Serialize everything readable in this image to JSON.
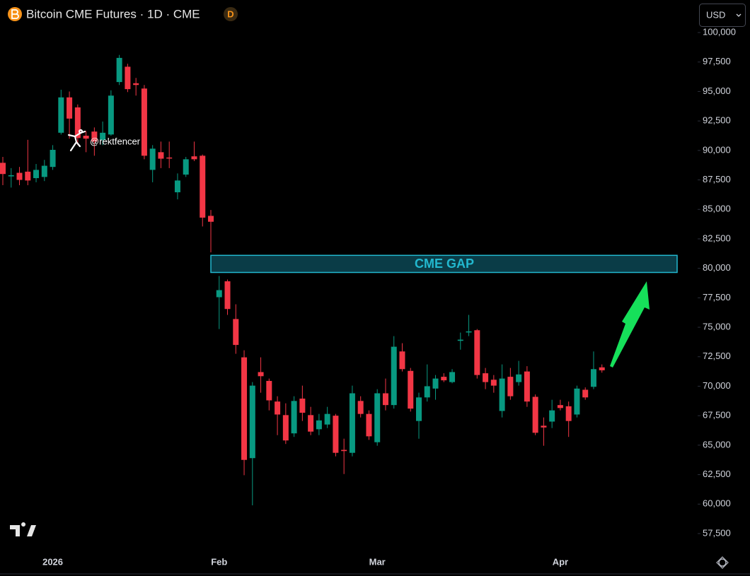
{
  "chart_data": {
    "type": "candlestick",
    "title": "Bitcoin CME Futures · 1D · CME",
    "badge": "D",
    "currency": "USD",
    "watermark": "@rektfencer",
    "gap": {
      "label": "CME GAP",
      "low": 79650,
      "high": 81100
    },
    "up_color": "#089981",
    "down_color": "#f23645",
    "categories": [
      null,
      null,
      null,
      null,
      null,
      null,
      "2026",
      null,
      null,
      null,
      null,
      null,
      null,
      null,
      null,
      null,
      null,
      null,
      null,
      null,
      null,
      null,
      null,
      null,
      null,
      null,
      "Feb",
      null,
      null,
      null,
      null,
      null,
      null,
      null,
      null,
      null,
      null,
      null,
      null,
      null,
      null,
      null,
      null,
      null,
      null,
      "Mar",
      null,
      null,
      null,
      null,
      null,
      null,
      null,
      null,
      null,
      null,
      null,
      null,
      null,
      null,
      null,
      null,
      null,
      null,
      null,
      null,
      null,
      "Apr",
      null,
      null,
      null,
      null,
      null
    ],
    "open": [
      88950,
      87800,
      88100,
      88200,
      87650,
      87750,
      88600,
      91500,
      94500,
      93650,
      91250,
      91600,
      90900,
      91350,
      95800,
      97100,
      95700,
      95250,
      88350,
      89850,
      89400,
      86450,
      87950,
      89500,
      89550,
      84450,
      77550,
      78900,
      75700,
      72450,
      63900,
      71200,
      70450,
      68700,
      67550,
      66000,
      68950,
      67550,
      66350,
      66750,
      67500,
      64600,
      64350,
      68750,
      67650,
      65250,
      69400,
      68400,
      72950,
      71300,
      67050,
      69050,
      69800,
      70800,
      70350,
      73850,
      74600,
      74750,
      71100,
      70550,
      67900,
      70800,
      70350,
      71250,
      69100,
      66650,
      67000,
      68400,
      68300,
      67600,
      69700,
      69950,
      71600
    ],
    "high": [
      89450,
      88500,
      88600,
      90900,
      88850,
      89200,
      90450,
      95150,
      95000,
      93900,
      91650,
      91950,
      92450,
      95100,
      98100,
      97350,
      96150,
      95550,
      90450,
      90750,
      90750,
      88050,
      89450,
      90750,
      89650,
      84950,
      79350,
      79050,
      76950,
      73050,
      70350,
      72450,
      70650,
      69150,
      68550,
      69150,
      70050,
      68250,
      67650,
      68250,
      67650,
      65550,
      70050,
      69150,
      67950,
      69750,
      70650,
      74250,
      73650,
      71550,
      69450,
      71850,
      70950,
      71100,
      71450,
      74550,
      76050,
      74850,
      71550,
      70950,
      71850,
      71550,
      72150,
      71700,
      69300,
      67350,
      68850,
      68850,
      68700,
      70050,
      69900,
      72950,
      71850
    ],
    "low": [
      87050,
      86850,
      87050,
      87050,
      87300,
      87400,
      88350,
      91350,
      91000,
      90450,
      89850,
      89550,
      90450,
      91250,
      95550,
      94950,
      94650,
      89250,
      87300,
      88500,
      88500,
      85850,
      87750,
      89100,
      83550,
      81350,
      74850,
      76050,
      72750,
      62450,
      59900,
      69450,
      67950,
      65850,
      65100,
      65700,
      67050,
      65850,
      65850,
      66450,
      64050,
      62550,
      64050,
      67350,
      65450,
      64950,
      67950,
      68100,
      71250,
      67850,
      65550,
      68700,
      68850,
      70350,
      70250,
      73100,
      74250,
      70650,
      69750,
      69450,
      67350,
      68850,
      70050,
      68250,
      65850,
      64950,
      66450,
      67950,
      65700,
      67350,
      68850,
      69750,
      71150
    ],
    "close": [
      88000,
      87900,
      87500,
      87450,
      88350,
      88700,
      90050,
      94500,
      92700,
      91050,
      91000,
      90750,
      91500,
      94650,
      97850,
      95200,
      95550,
      89550,
      90150,
      89300,
      89350,
      87450,
      89250,
      89250,
      84300,
      83950,
      78150,
      76550,
      73500,
      63750,
      70050,
      70850,
      68800,
      67600,
      65400,
      68750,
      67750,
      66150,
      67100,
      67650,
      64350,
      64500,
      69400,
      67650,
      65750,
      69400,
      68400,
      73350,
      71450,
      68100,
      69050,
      70000,
      70650,
      70500,
      71200,
      73950,
      74650,
      70950,
      70350,
      70050,
      70650,
      69150,
      71000,
      68700,
      66050,
      66500,
      67950,
      68150,
      67050,
      69800,
      69050,
      71450,
      71350
    ],
    "ylim": [
      56000,
      102760
    ],
    "yticks": [
      {
        "value": 57500,
        "label": "57,500"
      },
      {
        "value": 60000,
        "label": "60,000"
      },
      {
        "value": 62500,
        "label": "62,500"
      },
      {
        "value": 65000,
        "label": "65,000"
      },
      {
        "value": 67500,
        "label": "67,500"
      },
      {
        "value": 70000,
        "label": "70,000"
      },
      {
        "value": 72500,
        "label": "72,500"
      },
      {
        "value": 75000,
        "label": "75,000"
      },
      {
        "value": 77500,
        "label": "77,500"
      },
      {
        "value": 80000,
        "label": "80,000"
      },
      {
        "value": 82500,
        "label": "82,500"
      },
      {
        "value": 85000,
        "label": "85,000"
      },
      {
        "value": 87500,
        "label": "87,500"
      },
      {
        "value": 90000,
        "label": "90,000"
      },
      {
        "value": 92500,
        "label": "92,500"
      },
      {
        "value": 95000,
        "label": "95,000"
      },
      {
        "value": 97500,
        "label": "97,500"
      },
      {
        "value": 100000,
        "label": "100,000"
      }
    ],
    "grid": false
  }
}
